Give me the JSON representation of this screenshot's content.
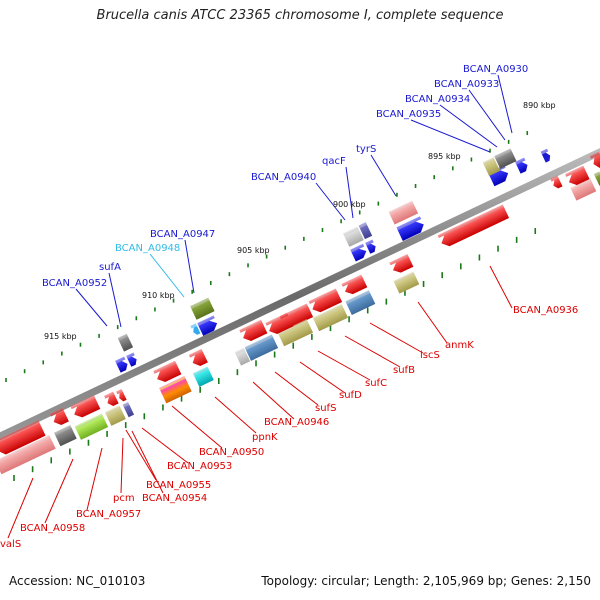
{
  "title": "Brucella canis ATCC 23365 chromosome I, complete sequence",
  "footer": {
    "accession": "Accession: NC_010103",
    "stats": "Topology: circular; Length: 2,105,969 bp; Genes: 2,150"
  },
  "colors": {
    "backbone": "#8c8c8c",
    "red_label": "#dd0000",
    "blue_label": "#1a1ad0",
    "cyan_label": "#33bbe6",
    "tick": "#1a7a1a"
  },
  "scale_labels": [
    "890 kbp",
    "895 kbp",
    "900 kbp",
    "905 kbp",
    "910 kbp",
    "915 kbp"
  ],
  "upper_labels": [
    {
      "text": "BCAN_A0930",
      "color": "blue"
    },
    {
      "text": "BCAN_A0933",
      "color": "blue"
    },
    {
      "text": "BCAN_A0934",
      "color": "blue"
    },
    {
      "text": "BCAN_A0935",
      "color": "blue"
    },
    {
      "text": "tyrS",
      "color": "blue"
    },
    {
      "text": "qacF",
      "color": "blue"
    },
    {
      "text": "BCAN_A0940",
      "color": "blue"
    },
    {
      "text": "BCAN_A0947",
      "color": "blue"
    },
    {
      "text": "BCAN_A0948",
      "color": "cyan"
    },
    {
      "text": "sufA",
      "color": "blue"
    },
    {
      "text": "BCAN_A0952",
      "color": "blue"
    }
  ],
  "lower_labels": [
    {
      "text": "BCAN_A0936"
    },
    {
      "text": "anmK"
    },
    {
      "text": "iscS"
    },
    {
      "text": "sufB"
    },
    {
      "text": "sufC"
    },
    {
      "text": "sufD"
    },
    {
      "text": "sufS"
    },
    {
      "text": "BCAN_A0946"
    },
    {
      "text": "ppnK"
    },
    {
      "text": "BCAN_A0950"
    },
    {
      "text": "BCAN_A0953"
    },
    {
      "text": "BCAN_A0954"
    },
    {
      "text": "BCAN_A0955"
    },
    {
      "text": "pcm"
    },
    {
      "text": "BCAN_A0957"
    },
    {
      "text": "BCAN_A0958"
    },
    {
      "text": "valS"
    }
  ]
}
